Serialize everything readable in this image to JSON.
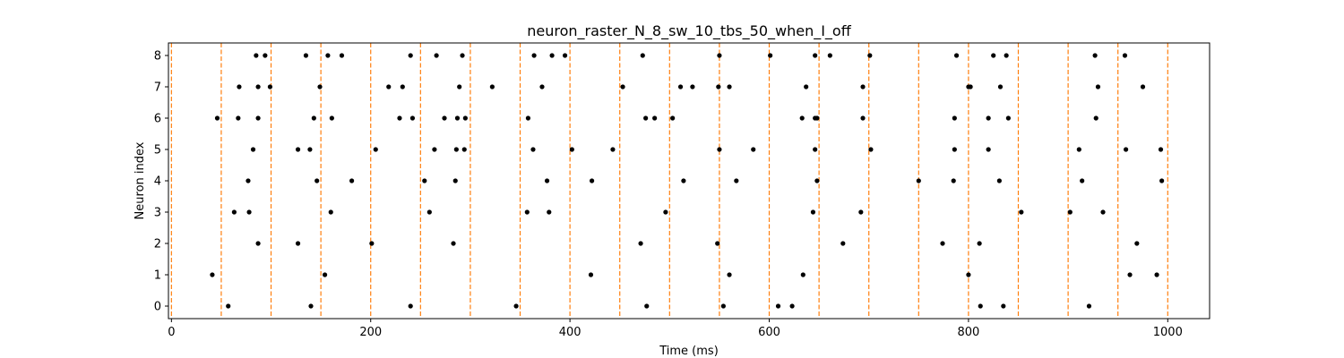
{
  "chart_data": {
    "type": "scatter",
    "title": "neuron_raster_N_8_sw_10_tbs_50_when_I_off",
    "xlabel": "Time (ms)",
    "ylabel": "Neuron index",
    "xlim": [
      -3,
      1042
    ],
    "ylim": [
      -0.4,
      8.4
    ],
    "xticks": [
      0,
      200,
      400,
      600,
      800,
      1000
    ],
    "yticks": [
      0,
      1,
      2,
      3,
      4,
      5,
      6,
      7,
      8
    ],
    "grid": false,
    "legend": "none",
    "marker_color": "#000000",
    "vline_color": "#ff7f0e",
    "vlines": [
      0,
      50,
      100,
      150,
      200,
      250,
      300,
      350,
      400,
      450,
      500,
      550,
      600,
      650,
      700,
      750,
      800,
      850,
      900,
      950,
      1000
    ],
    "spikes": [
      {
        "neuron": 8,
        "times": [
          85,
          94,
          135,
          157,
          171,
          240,
          266,
          292,
          364,
          382,
          395,
          473,
          550,
          601,
          646,
          661,
          701,
          788,
          825,
          838,
          927,
          957
        ]
      },
      {
        "neuron": 7,
        "times": [
          68,
          87,
          99,
          149,
          218,
          232,
          289,
          322,
          372,
          453,
          511,
          523,
          549,
          560,
          637,
          694,
          800,
          802,
          832,
          930,
          975
        ]
      },
      {
        "neuron": 6,
        "times": [
          46,
          67,
          87,
          143,
          161,
          229,
          242,
          274,
          287,
          295,
          358,
          476,
          485,
          503,
          633,
          646,
          648,
          694,
          786,
          820,
          840,
          928
        ]
      },
      {
        "neuron": 5,
        "times": [
          82,
          127,
          139,
          205,
          264,
          286,
          294,
          363,
          402,
          443,
          550,
          584,
          646,
          702,
          786,
          820,
          911,
          958,
          993
        ]
      },
      {
        "neuron": 4,
        "times": [
          77,
          146,
          181,
          254,
          285,
          377,
          422,
          514,
          567,
          648,
          750,
          785,
          831,
          914,
          994
        ]
      },
      {
        "neuron": 3,
        "times": [
          63,
          78,
          160,
          259,
          357,
          379,
          496,
          644,
          692,
          853,
          902,
          935
        ]
      },
      {
        "neuron": 2,
        "times": [
          87,
          127,
          201,
          283,
          471,
          548,
          674,
          774,
          811,
          969
        ]
      },
      {
        "neuron": 1,
        "times": [
          41,
          154,
          421,
          560,
          634,
          800,
          962,
          989
        ]
      },
      {
        "neuron": 0,
        "times": [
          57,
          140,
          240,
          346,
          477,
          554,
          609,
          623,
          812,
          835,
          921
        ]
      }
    ]
  }
}
